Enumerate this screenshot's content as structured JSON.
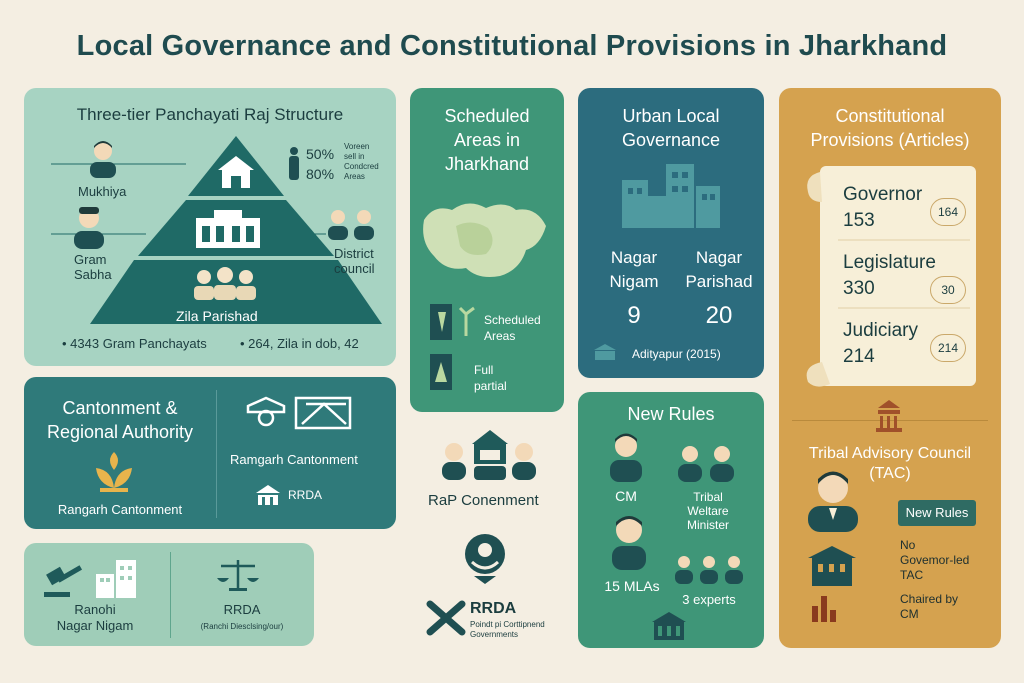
{
  "title": "Local Governance and Constitutional Provisions in Jharkhand",
  "panchayat": {
    "heading": "Three-tier Panchayati Raj Structure",
    "mukhiya": "Mukhiya",
    "gram_sabha": "Gram\nSabha",
    "district_council": "District\ncouncil",
    "zila_parishad": "Zila Parishad",
    "stat1": "50%",
    "stat2": "80%",
    "stat_note": "Voreen\nsell in\nCondcred\nAreas",
    "footer1": "4343 Gram Panchayats",
    "footer2": "264, Zila in dob, 42"
  },
  "scheduled": {
    "heading": "Scheduled\nAreas in\nJharkhand",
    "legend1": "Scheduled\nAreas",
    "legend2": "Full\npartial"
  },
  "urban": {
    "heading": "Urban Local\nGovernance",
    "col1_label": "Nagar\nNigam",
    "col2_label": "Nagar\nParishad",
    "col1_value": "9",
    "col2_value": "20",
    "footer": "Adityapur (2015)"
  },
  "constitution": {
    "heading": "Constitutional\nProvisions (Articles)",
    "rows": [
      {
        "label": "Governor",
        "value": "153",
        "badge": "164"
      },
      {
        "label": "Legislature",
        "value": "330",
        "badge": "30"
      },
      {
        "label": "Judiciary",
        "value": "214",
        "badge": "214"
      }
    ]
  },
  "cantonment": {
    "heading": "Cantonment &\nRegional Authority",
    "left_label": "Rangarh Cantonment",
    "right_label": "Ramgarh Cantonment",
    "rrda": "RRDA"
  },
  "bottom_left": {
    "left_label": "Ranohi\nNagar Nigam",
    "right_label": "RRDA",
    "right_sub": "(Ranchi Diesclsing/our)"
  },
  "middle": {
    "rap_label": "RaP Conenment",
    "rrda_label": "RRDA",
    "rrda_sub": "Poindt pi Corttipnend\nGovernments"
  },
  "new_rules": {
    "heading": "New Rules",
    "cm": "CM",
    "minister": "Tribal\nWeltare\nMinister",
    "mlas": "15 MLAs",
    "experts": "3 experts"
  },
  "tac": {
    "heading": "Tribal Advisory Council\n(TAC)",
    "badge": "New Rules",
    "note1": "No\nGovemor-led\nTAC",
    "note2": "Chaired by\nCM"
  },
  "colors": {
    "background": "#f4eee2",
    "light_green": "#a7d3c2",
    "teal": "#2f7a7a",
    "green": "#3f9678",
    "deep_teal": "#2c6c7e",
    "gold": "#d5a24f",
    "dark_text": "#1f4b4f"
  }
}
